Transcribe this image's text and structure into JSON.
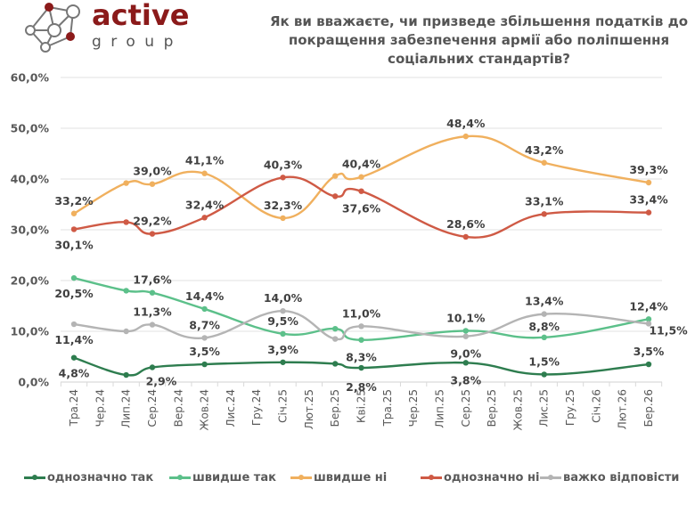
{
  "logo": {
    "word1": "active",
    "word2": "group",
    "brand_color": "#8b1a1a"
  },
  "chart_data": {
    "type": "line",
    "title": "Як ви вважаєте, чи призведе збільшення податків до покращення забезпечення армії або поліпшення соціальних стандартів?",
    "title_lines": [
      "Як ви вважаєте, чи призведе збільшення податків до",
      "покращення забезпечення армії або поліпшення",
      "соціальних стандартів?"
    ],
    "xlabel": "",
    "ylabel": "",
    "ylim": [
      0,
      60
    ],
    "yticks": [
      0,
      10,
      20,
      30,
      40,
      50,
      60
    ],
    "ytick_labels": [
      "0,0%",
      "10,0%",
      "20,0%",
      "30,0%",
      "40,0%",
      "50,0%",
      "60,0%"
    ],
    "grid": true,
    "legend_position": "bottom",
    "categories": [
      "Тра.24",
      "Чер.24",
      "Лип.24",
      "Сер.24",
      "Вер.24",
      "Жов.24",
      "Лис.24",
      "Гру.24",
      "Січ.25",
      "Лют.25",
      "Бер.25",
      "Кві.25",
      "Тра.25",
      "Чер.25",
      "Лип.25",
      "Сер.25",
      "Вер.25",
      "Жов.25",
      "Лис.25",
      "Гру.25",
      "Січ.26",
      "Лют.26",
      "Бер.26"
    ],
    "series": [
      {
        "name": "однозначно так",
        "color": "#2e7d4f",
        "points": [
          {
            "x": "Тра.24",
            "y": 4.8,
            "label": "4,8%"
          },
          {
            "x": "Лип.24",
            "y": 1.4,
            "label": ""
          },
          {
            "x": "Сер.24",
            "y": 2.9,
            "label": "2,9%"
          },
          {
            "x": "Жов.24",
            "y": 3.5,
            "label": "3,5%"
          },
          {
            "x": "Січ.25",
            "y": 3.9,
            "label": "3,9%"
          },
          {
            "x": "Бер.25",
            "y": 3.6,
            "label": ""
          },
          {
            "x": "Кві.25",
            "y": 2.8,
            "label": "2,8%"
          },
          {
            "x": "Сер.25",
            "y": 3.8,
            "label": "3,8%"
          },
          {
            "x": "Лис.25",
            "y": 1.5,
            "label": "1,5%"
          },
          {
            "x": "Бер.26",
            "y": 3.5,
            "label": "3,5%"
          }
        ]
      },
      {
        "name": "швидше так",
        "color": "#5cc08a",
        "points": [
          {
            "x": "Тра.24",
            "y": 20.5,
            "label": "20,5%"
          },
          {
            "x": "Лип.24",
            "y": 18.0,
            "label": ""
          },
          {
            "x": "Сер.24",
            "y": 17.6,
            "label": "17,6%"
          },
          {
            "x": "Жов.24",
            "y": 14.4,
            "label": "14,4%"
          },
          {
            "x": "Січ.25",
            "y": 9.5,
            "label": "9,5%"
          },
          {
            "x": "Бер.25",
            "y": 10.5,
            "label": ""
          },
          {
            "x": "Кві.25",
            "y": 8.3,
            "label": "8,3%"
          },
          {
            "x": "Сер.25",
            "y": 10.1,
            "label": "10,1%"
          },
          {
            "x": "Лис.25",
            "y": 8.8,
            "label": "8,8%"
          },
          {
            "x": "Бер.26",
            "y": 12.4,
            "label": "12,4%"
          }
        ]
      },
      {
        "name": "швидше ні",
        "color": "#f0b05e",
        "points": [
          {
            "x": "Тра.24",
            "y": 33.2,
            "label": "33,2%"
          },
          {
            "x": "Лип.24",
            "y": 39.2,
            "label": ""
          },
          {
            "x": "Сер.24",
            "y": 39.0,
            "label": "39,0%"
          },
          {
            "x": "Жов.24",
            "y": 41.1,
            "label": "41,1%"
          },
          {
            "x": "Січ.25",
            "y": 32.3,
            "label": "32,3%"
          },
          {
            "x": "Бер.25",
            "y": 40.6,
            "label": ""
          },
          {
            "x": "Кві.25",
            "y": 40.4,
            "label": "40,4%"
          },
          {
            "x": "Сер.25",
            "y": 48.4,
            "label": "48,4%"
          },
          {
            "x": "Лис.25",
            "y": 43.2,
            "label": "43,2%"
          },
          {
            "x": "Бер.26",
            "y": 39.3,
            "label": "39,3%"
          }
        ]
      },
      {
        "name": "однозначно ні",
        "color": "#cf5a45",
        "points": [
          {
            "x": "Тра.24",
            "y": 30.1,
            "label": "30,1%"
          },
          {
            "x": "Лип.24",
            "y": 31.5,
            "label": ""
          },
          {
            "x": "Сер.24",
            "y": 29.2,
            "label": "29,2%"
          },
          {
            "x": "Жов.24",
            "y": 32.4,
            "label": "32,4%"
          },
          {
            "x": "Січ.25",
            "y": 40.3,
            "label": "40,3%"
          },
          {
            "x": "Бер.25",
            "y": 36.6,
            "label": ""
          },
          {
            "x": "Кві.25",
            "y": 37.6,
            "label": "37,6%"
          },
          {
            "x": "Сер.25",
            "y": 28.6,
            "label": "28,6%"
          },
          {
            "x": "Лис.25",
            "y": 33.1,
            "label": "33,1%"
          },
          {
            "x": "Бер.26",
            "y": 33.4,
            "label": "33,4%"
          }
        ]
      },
      {
        "name": "важко відповісти",
        "color": "#b4b4b4",
        "points": [
          {
            "x": "Тра.24",
            "y": 11.4,
            "label": "11,4%"
          },
          {
            "x": "Лип.24",
            "y": 10.0,
            "label": ""
          },
          {
            "x": "Сер.24",
            "y": 11.3,
            "label": "11,3%"
          },
          {
            "x": "Жов.24",
            "y": 8.7,
            "label": "8,7%"
          },
          {
            "x": "Січ.25",
            "y": 14.0,
            "label": "14,0%"
          },
          {
            "x": "Бер.25",
            "y": 8.5,
            "label": ""
          },
          {
            "x": "Кві.25",
            "y": 11.0,
            "label": "11,0%"
          },
          {
            "x": "Сер.25",
            "y": 9.0,
            "label": "9,0%"
          },
          {
            "x": "Лис.25",
            "y": 13.4,
            "label": "13,4%"
          },
          {
            "x": "Бер.26",
            "y": 11.5,
            "label": "11,5%"
          }
        ]
      }
    ]
  }
}
